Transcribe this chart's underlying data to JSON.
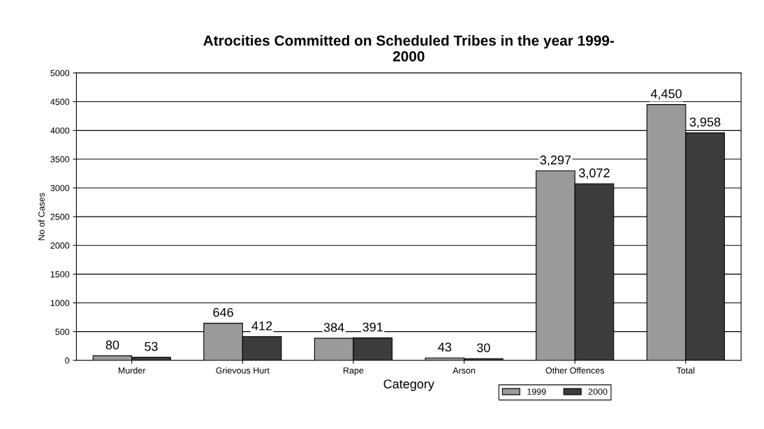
{
  "chart_data": {
    "type": "bar",
    "title": "Atrocities Committed on Scheduled Tribes in the year 1999-\n2000",
    "xlabel": "Category",
    "ylabel": "No of Cases",
    "categories": [
      "Murder",
      "Grievous Hurt",
      "Rape",
      "Arson",
      "Other Offences",
      "Total"
    ],
    "series": [
      {
        "name": "1999",
        "color": "#9a9a9a",
        "values": [
          80,
          646,
          384,
          43,
          3297,
          4450
        ],
        "value_labels": [
          "80",
          "646",
          "384",
          "43",
          "3,297",
          "4,450"
        ]
      },
      {
        "name": "2000",
        "color": "#3c3c3c",
        "values": [
          53,
          412,
          391,
          30,
          3072,
          3958
        ],
        "value_labels": [
          "53",
          "412",
          "391",
          "30",
          "3,072",
          "3,958"
        ]
      }
    ],
    "ylim": [
      0,
      5000
    ],
    "yticks": [
      0,
      500,
      1000,
      1500,
      2000,
      2500,
      3000,
      3500,
      4000,
      4500,
      5000
    ],
    "grid": "y",
    "legend": "bottom"
  }
}
